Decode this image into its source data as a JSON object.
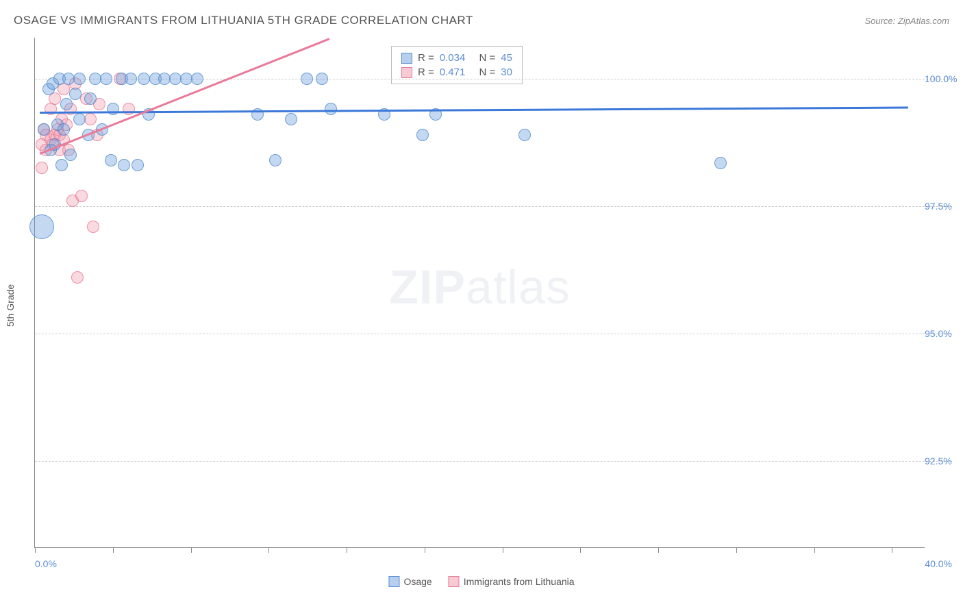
{
  "header": {
    "title": "OSAGE VS IMMIGRANTS FROM LITHUANIA 5TH GRADE CORRELATION CHART",
    "source_prefix": "Source: ",
    "source_name": "ZipAtlas.com"
  },
  "ylabel": "5th Grade",
  "watermark": {
    "bold": "ZIP",
    "light": "atlas"
  },
  "chart": {
    "type": "scatter",
    "xlim": [
      0.0,
      40.0
    ],
    "ylim": [
      90.8,
      100.8
    ],
    "x_tick_positions": [
      0,
      3.5,
      7,
      10.5,
      14,
      17.5,
      21,
      24.5,
      28,
      31.5,
      35,
      38.5
    ],
    "x_min_label": "0.0%",
    "x_max_label": "40.0%",
    "y_gridlines": [
      92.5,
      95.0,
      97.5,
      100.0
    ],
    "y_tick_labels": [
      "92.5%",
      "95.0%",
      "97.5%",
      "100.0%"
    ],
    "colors": {
      "blue_fill": "rgba(108,160,220,0.40)",
      "blue_stroke": "#3b78d8",
      "pink_fill": "rgba(240,150,170,0.35)",
      "pink_stroke": "#e87a9a",
      "axis": "#888888",
      "grid": "#cccccc",
      "tick_text": "#5b8dd6",
      "title_text": "#555555",
      "background": "#ffffff"
    },
    "bubble_radius_default": 9,
    "series": [
      {
        "name": "Osage",
        "class": "blue",
        "stats": {
          "R": "0.034",
          "N": "45"
        },
        "trend": {
          "x1": 0.2,
          "y1": 99.35,
          "x2": 39.2,
          "y2": 99.45
        },
        "points": [
          {
            "x": 0.3,
            "y": 97.1,
            "r": 18
          },
          {
            "x": 0.4,
            "y": 99.0
          },
          {
            "x": 0.6,
            "y": 99.8
          },
          {
            "x": 0.7,
            "y": 98.6
          },
          {
            "x": 0.8,
            "y": 99.9
          },
          {
            "x": 1.0,
            "y": 99.1
          },
          {
            "x": 1.1,
            "y": 100.0
          },
          {
            "x": 1.2,
            "y": 98.3
          },
          {
            "x": 1.4,
            "y": 99.5
          },
          {
            "x": 1.5,
            "y": 100.0
          },
          {
            "x": 1.6,
            "y": 98.5
          },
          {
            "x": 1.8,
            "y": 99.7
          },
          {
            "x": 2.0,
            "y": 99.2
          },
          {
            "x": 2.0,
            "y": 100.0
          },
          {
            "x": 2.4,
            "y": 98.9
          },
          {
            "x": 2.5,
            "y": 99.6
          },
          {
            "x": 2.7,
            "y": 100.0
          },
          {
            "x": 3.0,
            "y": 99.0
          },
          {
            "x": 3.2,
            "y": 100.0
          },
          {
            "x": 3.4,
            "y": 98.4
          },
          {
            "x": 3.5,
            "y": 99.4
          },
          {
            "x": 3.9,
            "y": 100.0
          },
          {
            "x": 4.0,
            "y": 98.3
          },
          {
            "x": 4.3,
            "y": 100.0
          },
          {
            "x": 4.6,
            "y": 98.3
          },
          {
            "x": 4.9,
            "y": 100.0
          },
          {
            "x": 5.1,
            "y": 99.3
          },
          {
            "x": 5.4,
            "y": 100.0
          },
          {
            "x": 5.8,
            "y": 100.0
          },
          {
            "x": 6.3,
            "y": 100.0
          },
          {
            "x": 6.8,
            "y": 100.0
          },
          {
            "x": 7.3,
            "y": 100.0
          },
          {
            "x": 10.0,
            "y": 99.3
          },
          {
            "x": 10.8,
            "y": 98.4
          },
          {
            "x": 11.5,
            "y": 99.2
          },
          {
            "x": 12.2,
            "y": 100.0
          },
          {
            "x": 12.9,
            "y": 100.0
          },
          {
            "x": 13.3,
            "y": 99.4
          },
          {
            "x": 15.7,
            "y": 99.3
          },
          {
            "x": 17.4,
            "y": 98.9
          },
          {
            "x": 18.0,
            "y": 99.3
          },
          {
            "x": 22.0,
            "y": 98.9
          },
          {
            "x": 30.8,
            "y": 98.35
          },
          {
            "x": 0.9,
            "y": 98.7
          },
          {
            "x": 1.3,
            "y": 99.0
          }
        ]
      },
      {
        "name": "Immigrants from Lithuania",
        "class": "pink",
        "stats": {
          "R": "0.471",
          "N": "30"
        },
        "trend": {
          "x1": 0.2,
          "y1": 98.55,
          "x2": 13.2,
          "y2": 100.8
        },
        "points": [
          {
            "x": 0.3,
            "y": 98.25
          },
          {
            "x": 0.3,
            "y": 98.7
          },
          {
            "x": 0.4,
            "y": 99.0
          },
          {
            "x": 0.5,
            "y": 98.9
          },
          {
            "x": 0.5,
            "y": 98.6
          },
          {
            "x": 0.7,
            "y": 98.8
          },
          {
            "x": 0.7,
            "y": 99.4
          },
          {
            "x": 0.8,
            "y": 98.7
          },
          {
            "x": 0.9,
            "y": 99.6
          },
          {
            "x": 0.9,
            "y": 98.9
          },
          {
            "x": 1.0,
            "y": 99.0
          },
          {
            "x": 1.1,
            "y": 98.6
          },
          {
            "x": 1.1,
            "y": 98.9
          },
          {
            "x": 1.2,
            "y": 99.2
          },
          {
            "x": 1.3,
            "y": 98.8
          },
          {
            "x": 1.3,
            "y": 99.8
          },
          {
            "x": 1.4,
            "y": 99.1
          },
          {
            "x": 1.5,
            "y": 98.6
          },
          {
            "x": 1.6,
            "y": 99.4
          },
          {
            "x": 1.7,
            "y": 97.6
          },
          {
            "x": 1.8,
            "y": 99.9
          },
          {
            "x": 1.9,
            "y": 96.1
          },
          {
            "x": 2.1,
            "y": 97.7
          },
          {
            "x": 2.3,
            "y": 99.6
          },
          {
            "x": 2.5,
            "y": 99.2
          },
          {
            "x": 2.6,
            "y": 97.1
          },
          {
            "x": 2.8,
            "y": 98.9
          },
          {
            "x": 2.9,
            "y": 99.5
          },
          {
            "x": 3.8,
            "y": 100.0
          },
          {
            "x": 4.2,
            "y": 99.4
          }
        ]
      }
    ]
  },
  "stats_legend": {
    "R_label": "R =",
    "N_label": "N ="
  },
  "bottom_legend": {
    "items": [
      "Osage",
      "Immigrants from Lithuania"
    ]
  }
}
